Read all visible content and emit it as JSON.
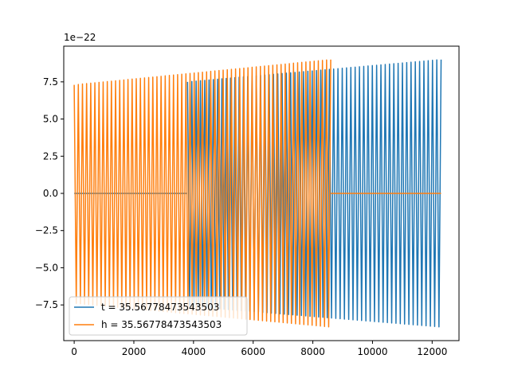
{
  "chart_data": {
    "type": "line",
    "title": "",
    "xlabel": "",
    "ylabel": "",
    "y_offset_text": "1e−22",
    "xlim": [
      -350,
      12900
    ],
    "ylim": [
      -9.9,
      9.9
    ],
    "x_ticks": [
      0,
      2000,
      4000,
      6000,
      8000,
      10000,
      12000
    ],
    "x_tick_labels": [
      "0",
      "2000",
      "4000",
      "6000",
      "8000",
      "10000",
      "12000"
    ],
    "y_ticks": [
      -7.5,
      -5.0,
      -2.5,
      0.0,
      2.5,
      5.0,
      7.5
    ],
    "y_tick_labels": [
      "−7.5",
      "−5.0",
      "−2.5",
      "0.0",
      "2.5",
      "5.0",
      "7.5"
    ],
    "grid": false,
    "legend_position": "lower-left",
    "series": [
      {
        "name": "t = 35.56778473543503",
        "color": "#1f77b4",
        "segments": [
          {
            "kind": "flat",
            "x_start": 0,
            "x_end": 3800,
            "y": 0.0
          },
          {
            "kind": "osc",
            "x_start": 3800,
            "x_end": 12300,
            "periods": 59,
            "amp_start": 7.5,
            "amp_end": 9.0,
            "min_start": -7.6,
            "min_end": -9.0
          }
        ]
      },
      {
        "name": "h = 35.56778473543503",
        "color": "#ff7f0e",
        "segments": [
          {
            "kind": "osc",
            "x_start": 0,
            "x_end": 8600,
            "periods": 62,
            "amp_start": 7.3,
            "amp_end": 9.0,
            "min_start": -7.4,
            "min_end": -9.0
          },
          {
            "kind": "flat",
            "x_start": 8600,
            "x_end": 12300,
            "y": 0.0
          }
        ]
      }
    ]
  }
}
